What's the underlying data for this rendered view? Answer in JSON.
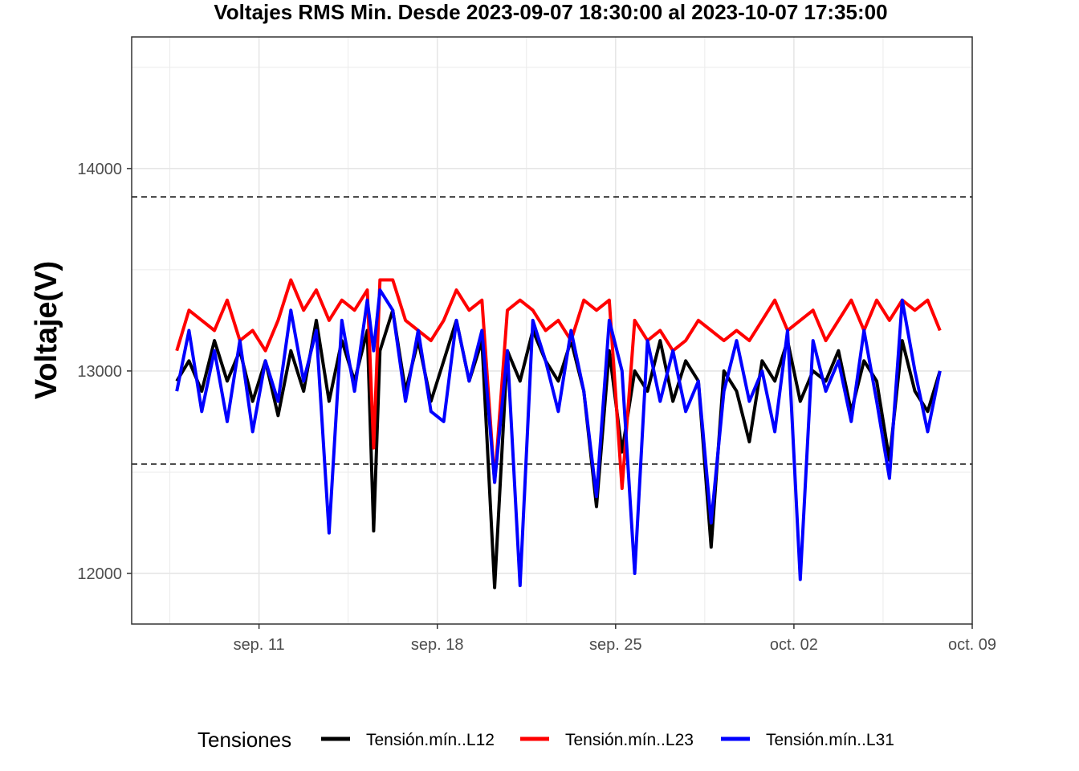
{
  "chart_data": {
    "type": "line",
    "title": "Voltajes RMS Min. Desde  2023-09-07 18:30:00  al  2023-10-07 17:35:00",
    "xlabel": "",
    "ylabel": "Voltaje(V)",
    "xlim": [
      "2023-09-06",
      "2023-10-09"
    ],
    "ylim": [
      11750,
      14650
    ],
    "x_ticks": [
      {
        "date": "2023-09-11",
        "label": "sep. 11"
      },
      {
        "date": "2023-09-18",
        "label": "sep. 18"
      },
      {
        "date": "2023-09-25",
        "label": "sep. 25"
      },
      {
        "date": "2023-10-02",
        "label": "oct. 02"
      },
      {
        "date": "2023-10-09",
        "label": "oct. 09"
      }
    ],
    "y_ticks": [
      12000,
      13000,
      14000
    ],
    "reference_lines": [
      13860,
      12540
    ],
    "grid": true,
    "legend": {
      "title": "Tensiones",
      "position": "bottom"
    },
    "series": [
      {
        "name": "Tensión.mín..L12",
        "color": "#000000",
        "x": [
          "2023-09-07 18:30",
          "2023-09-08 06:00",
          "2023-09-08 18:00",
          "2023-09-09 06:00",
          "2023-09-09 18:00",
          "2023-09-10 06:00",
          "2023-09-10 18:00",
          "2023-09-11 06:00",
          "2023-09-11 18:00",
          "2023-09-12 06:00",
          "2023-09-12 18:00",
          "2023-09-13 06:00",
          "2023-09-13 18:00",
          "2023-09-14 06:00",
          "2023-09-14 18:00",
          "2023-09-15 06:00",
          "2023-09-15 12:00",
          "2023-09-15 18:00",
          "2023-09-16 06:00",
          "2023-09-16 18:00",
          "2023-09-17 06:00",
          "2023-09-17 18:00",
          "2023-09-18 06:00",
          "2023-09-18 18:00",
          "2023-09-19 06:00",
          "2023-09-19 18:00",
          "2023-09-20 06:00",
          "2023-09-20 18:00",
          "2023-09-21 06:00",
          "2023-09-21 18:00",
          "2023-09-22 06:00",
          "2023-09-22 18:00",
          "2023-09-23 06:00",
          "2023-09-23 18:00",
          "2023-09-24 06:00",
          "2023-09-24 18:00",
          "2023-09-25 06:00",
          "2023-09-25 18:00",
          "2023-09-26 06:00",
          "2023-09-26 18:00",
          "2023-09-27 06:00",
          "2023-09-27 18:00",
          "2023-09-28 06:00",
          "2023-09-28 18:00",
          "2023-09-29 06:00",
          "2023-09-29 18:00",
          "2023-09-30 06:00",
          "2023-09-30 18:00",
          "2023-10-01 06:00",
          "2023-10-01 18:00",
          "2023-10-02 06:00",
          "2023-10-02 18:00",
          "2023-10-03 06:00",
          "2023-10-03 18:00",
          "2023-10-04 06:00",
          "2023-10-04 18:00",
          "2023-10-05 06:00",
          "2023-10-05 18:00",
          "2023-10-06 06:00",
          "2023-10-06 18:00",
          "2023-10-07 06:00",
          "2023-10-07 17:35"
        ],
        "y": [
          12950,
          13050,
          12900,
          13150,
          12950,
          13100,
          12850,
          13050,
          12780,
          13100,
          12900,
          13250,
          12850,
          13150,
          12950,
          13200,
          12210,
          13100,
          13300,
          12900,
          13150,
          12850,
          13050,
          13250,
          12950,
          13150,
          11930,
          13100,
          12950,
          13200,
          13050,
          12950,
          13150,
          12900,
          12330,
          13100,
          12600,
          13000,
          12900,
          13150,
          12850,
          13050,
          12950,
          12130,
          13000,
          12900,
          12650,
          13050,
          12950,
          13150,
          12850,
          13000,
          12950,
          13100,
          12800,
          13050,
          12950,
          12560,
          13150,
          12900,
          12800,
          13000
        ]
      },
      {
        "name": "Tensión.mín..L23",
        "color": "#ff0000",
        "x": [
          "2023-09-07 18:30",
          "2023-09-08 06:00",
          "2023-09-08 18:00",
          "2023-09-09 06:00",
          "2023-09-09 18:00",
          "2023-09-10 06:00",
          "2023-09-10 18:00",
          "2023-09-11 06:00",
          "2023-09-11 18:00",
          "2023-09-12 06:00",
          "2023-09-12 18:00",
          "2023-09-13 06:00",
          "2023-09-13 18:00",
          "2023-09-14 06:00",
          "2023-09-14 18:00",
          "2023-09-15 06:00",
          "2023-09-15 12:00",
          "2023-09-15 18:00",
          "2023-09-16 06:00",
          "2023-09-16 18:00",
          "2023-09-17 06:00",
          "2023-09-17 18:00",
          "2023-09-18 06:00",
          "2023-09-18 18:00",
          "2023-09-19 06:00",
          "2023-09-19 18:00",
          "2023-09-20 06:00",
          "2023-09-20 18:00",
          "2023-09-21 06:00",
          "2023-09-21 18:00",
          "2023-09-22 06:00",
          "2023-09-22 18:00",
          "2023-09-23 06:00",
          "2023-09-23 18:00",
          "2023-09-24 06:00",
          "2023-09-24 18:00",
          "2023-09-25 06:00",
          "2023-09-25 18:00",
          "2023-09-26 06:00",
          "2023-09-26 18:00",
          "2023-09-27 06:00",
          "2023-09-27 18:00",
          "2023-09-28 06:00",
          "2023-09-28 18:00",
          "2023-09-29 06:00",
          "2023-09-29 18:00",
          "2023-09-30 06:00",
          "2023-09-30 18:00",
          "2023-10-01 06:00",
          "2023-10-01 18:00",
          "2023-10-02 06:00",
          "2023-10-02 18:00",
          "2023-10-03 06:00",
          "2023-10-03 18:00",
          "2023-10-04 06:00",
          "2023-10-04 18:00",
          "2023-10-05 06:00",
          "2023-10-05 18:00",
          "2023-10-06 06:00",
          "2023-10-06 18:00",
          "2023-10-07 06:00",
          "2023-10-07 17:35"
        ],
        "y": [
          13100,
          13300,
          13250,
          13200,
          13350,
          13150,
          13200,
          13100,
          13250,
          13450,
          13300,
          13400,
          13250,
          13350,
          13300,
          13400,
          12620,
          13450,
          13450,
          13250,
          13200,
          13150,
          13250,
          13400,
          13300,
          13350,
          12450,
          13300,
          13350,
          13300,
          13200,
          13250,
          13150,
          13350,
          13300,
          13350,
          12420,
          13250,
          13150,
          13200,
          13100,
          13150,
          13250,
          13200,
          13150,
          13200,
          13150,
          13250,
          13350,
          13200,
          13250,
          13300,
          13150,
          13250,
          13350,
          13200,
          13350,
          13250,
          13350,
          13300,
          13350,
          13200
        ]
      },
      {
        "name": "Tensión.mín..L31",
        "color": "#0000ff",
        "x": [
          "2023-09-07 18:30",
          "2023-09-08 06:00",
          "2023-09-08 18:00",
          "2023-09-09 06:00",
          "2023-09-09 18:00",
          "2023-09-10 06:00",
          "2023-09-10 18:00",
          "2023-09-11 06:00",
          "2023-09-11 18:00",
          "2023-09-12 06:00",
          "2023-09-12 18:00",
          "2023-09-13 06:00",
          "2023-09-13 18:00",
          "2023-09-14 06:00",
          "2023-09-14 18:00",
          "2023-09-15 06:00",
          "2023-09-15 12:00",
          "2023-09-15 18:00",
          "2023-09-16 06:00",
          "2023-09-16 18:00",
          "2023-09-17 06:00",
          "2023-09-17 18:00",
          "2023-09-18 06:00",
          "2023-09-18 18:00",
          "2023-09-19 06:00",
          "2023-09-19 18:00",
          "2023-09-20 06:00",
          "2023-09-20 18:00",
          "2023-09-21 06:00",
          "2023-09-21 18:00",
          "2023-09-22 06:00",
          "2023-09-22 18:00",
          "2023-09-23 06:00",
          "2023-09-23 18:00",
          "2023-09-24 06:00",
          "2023-09-24 18:00",
          "2023-09-25 06:00",
          "2023-09-25 18:00",
          "2023-09-26 06:00",
          "2023-09-26 18:00",
          "2023-09-27 06:00",
          "2023-09-27 18:00",
          "2023-09-28 06:00",
          "2023-09-28 18:00",
          "2023-09-29 06:00",
          "2023-09-29 18:00",
          "2023-09-30 06:00",
          "2023-09-30 18:00",
          "2023-10-01 06:00",
          "2023-10-01 18:00",
          "2023-10-02 06:00",
          "2023-10-02 18:00",
          "2023-10-03 06:00",
          "2023-10-03 18:00",
          "2023-10-04 06:00",
          "2023-10-04 18:00",
          "2023-10-05 06:00",
          "2023-10-05 18:00",
          "2023-10-06 06:00",
          "2023-10-06 18:00",
          "2023-10-07 06:00",
          "2023-10-07 17:35"
        ],
        "y": [
          12900,
          13200,
          12800,
          13100,
          12750,
          13150,
          12700,
          13050,
          12850,
          13300,
          12950,
          13200,
          12200,
          13250,
          12900,
          13350,
          13100,
          13400,
          13300,
          12850,
          13200,
          12800,
          12750,
          13250,
          12950,
          13200,
          12450,
          13100,
          11940,
          13250,
          13050,
          12800,
          13200,
          12900,
          12380,
          13250,
          13000,
          12000,
          13150,
          12850,
          13100,
          12800,
          12950,
          12250,
          12900,
          13150,
          12850,
          13000,
          12700,
          13200,
          11970,
          13150,
          12900,
          13050,
          12750,
          13200,
          12850,
          12470,
          13350,
          13000,
          12700,
          13000
        ]
      }
    ]
  }
}
